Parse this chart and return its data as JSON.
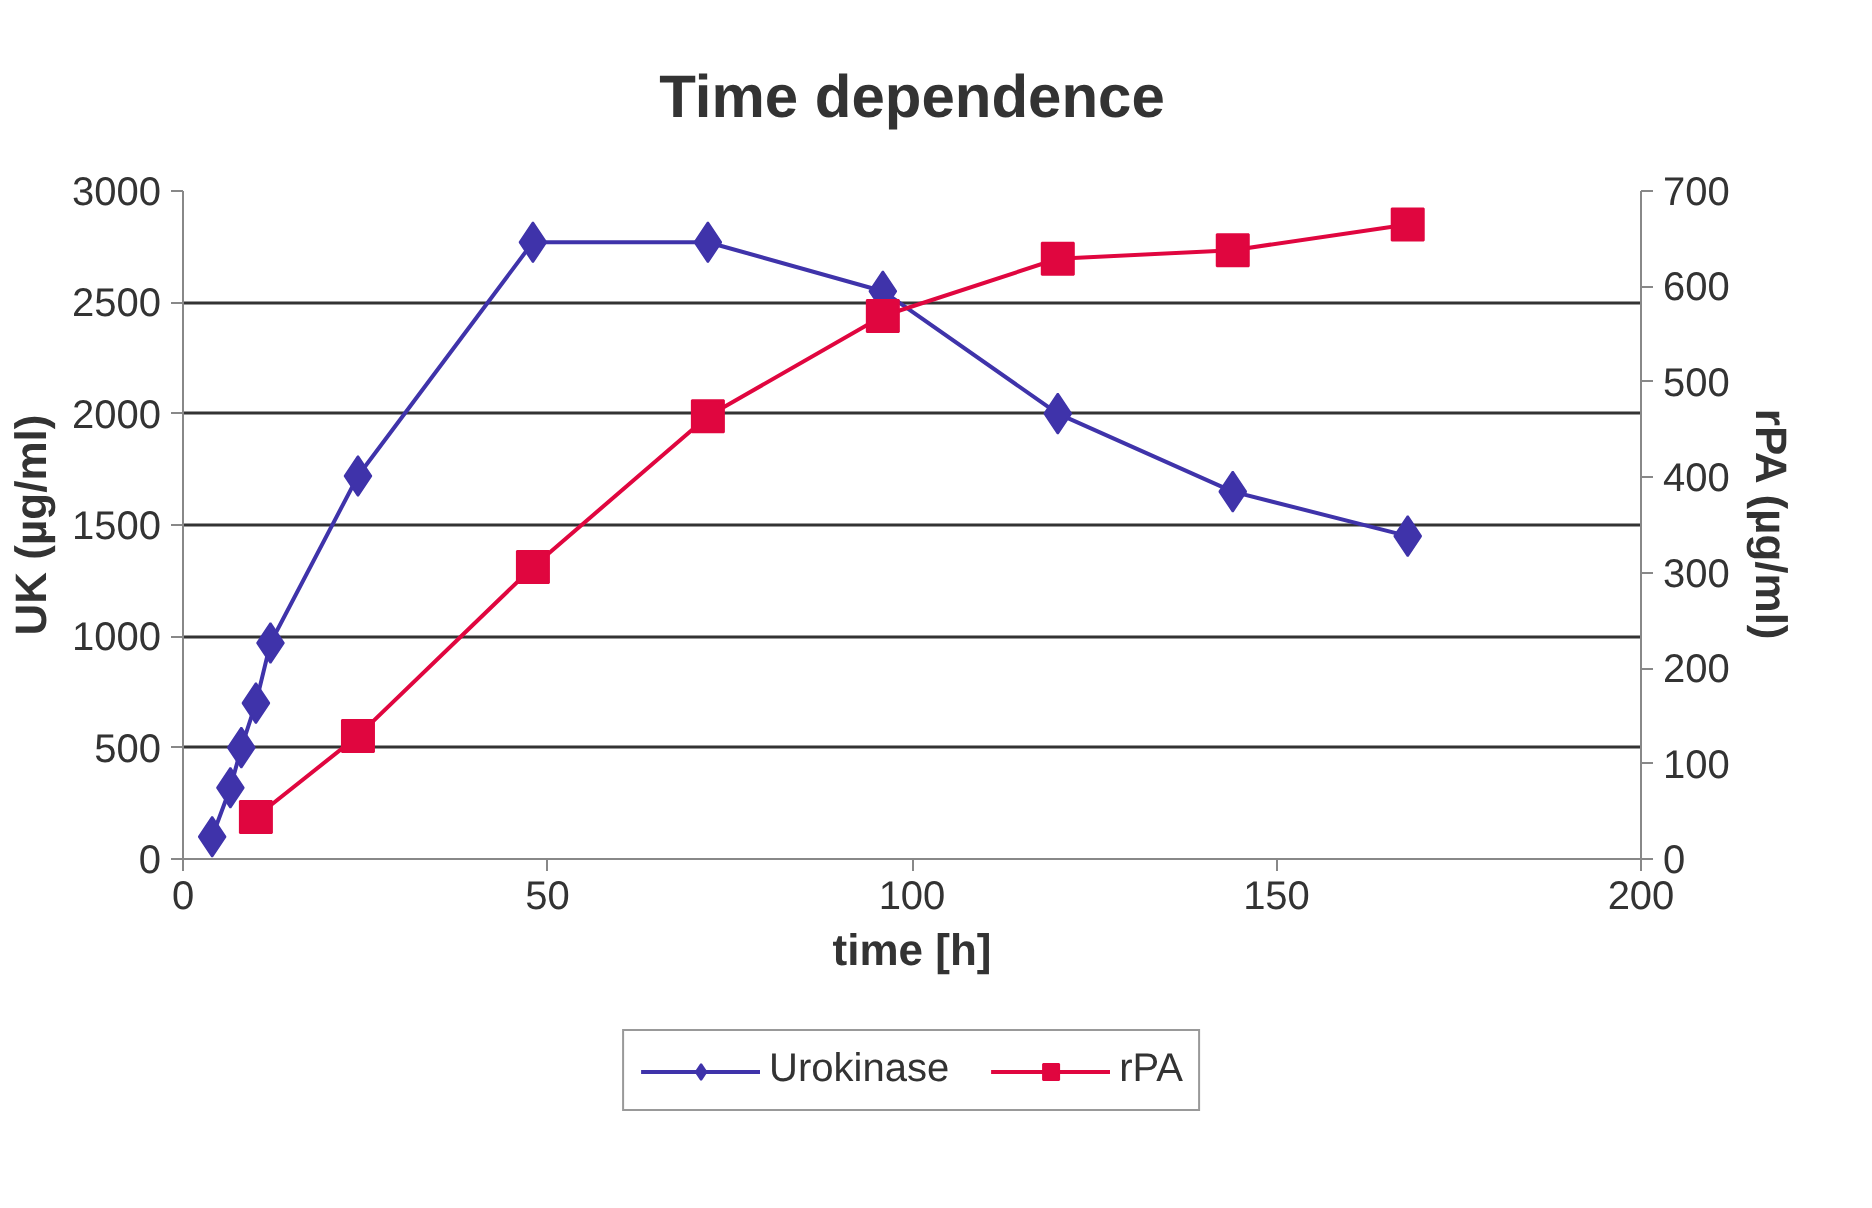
{
  "chart_data": {
    "type": "line",
    "title": "Time dependence",
    "xlabel": "time [h]",
    "ylabel": "UK (µg/ml)",
    "y2label": "rPA (µg/ml)",
    "xlim": [
      0,
      200
    ],
    "xticks": [
      0,
      50,
      100,
      150,
      200
    ],
    "ylim": [
      0,
      3000
    ],
    "yticks": [
      0,
      500,
      1000,
      1500,
      2000,
      2500,
      3000
    ],
    "y2lim": [
      0,
      700
    ],
    "y2ticks": [
      0,
      100,
      200,
      300,
      400,
      500,
      600,
      700
    ],
    "grid": "y",
    "legend": "bottom",
    "series": [
      {
        "name": "Urokinase",
        "color": "#3f33aa",
        "marker": "diamond",
        "x": [
          4,
          6.5,
          8,
          10,
          12,
          24,
          48,
          72,
          96,
          120,
          144,
          168
        ],
        "values": [
          100,
          320,
          500,
          700,
          970,
          1720,
          2770,
          2770,
          2550,
          2000,
          1650,
          1450
        ]
      },
      {
        "name": "rPA",
        "color": "#e0063f",
        "marker": "square",
        "axis": "y2",
        "x": [
          10,
          24,
          48,
          72,
          96,
          120,
          144,
          168
        ],
        "values": [
          44,
          129,
          306,
          464,
          569,
          629,
          638,
          665
        ]
      }
    ]
  }
}
